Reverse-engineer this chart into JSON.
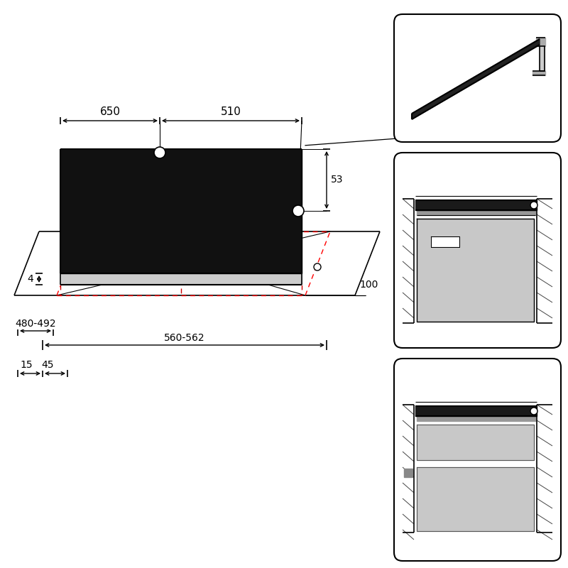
{
  "bg_color": "#ffffff",
  "line_color": "#000000",
  "red_dashed_color": "#cc0000",
  "gray_fill": "#c8c8c8",
  "gray_light": "#e0e0e0",
  "dark_fill": "#1a1a1a",
  "hatch_color": "#555555"
}
